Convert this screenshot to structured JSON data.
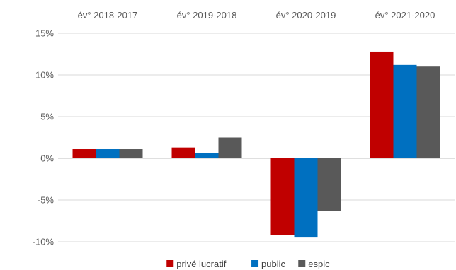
{
  "chart_data": {
    "type": "bar",
    "categories": [
      "év° 2018-2017",
      "év° 2019-2018",
      "év° 2020-2019",
      "év° 2021-2020"
    ],
    "category_axis_position": "top",
    "series": [
      {
        "name": "privé lucratif",
        "color": "#C00000",
        "values": [
          1.1,
          1.3,
          -9.2,
          12.8
        ]
      },
      {
        "name": "public",
        "color": "#0070C0",
        "values": [
          1.1,
          0.6,
          -9.5,
          11.2
        ]
      },
      {
        "name": "espic",
        "color": "#595959",
        "values": [
          1.1,
          2.5,
          -6.3,
          11.0
        ]
      }
    ],
    "ylim": [
      -10,
      15
    ],
    "yticks": [
      15,
      10,
      5,
      0,
      -5,
      -10
    ],
    "ytick_labels": [
      "15%",
      "10%",
      "5%",
      "0%",
      "-5%",
      "-10%"
    ],
    "unit": "%",
    "grid": true,
    "legend_position": "bottom"
  }
}
